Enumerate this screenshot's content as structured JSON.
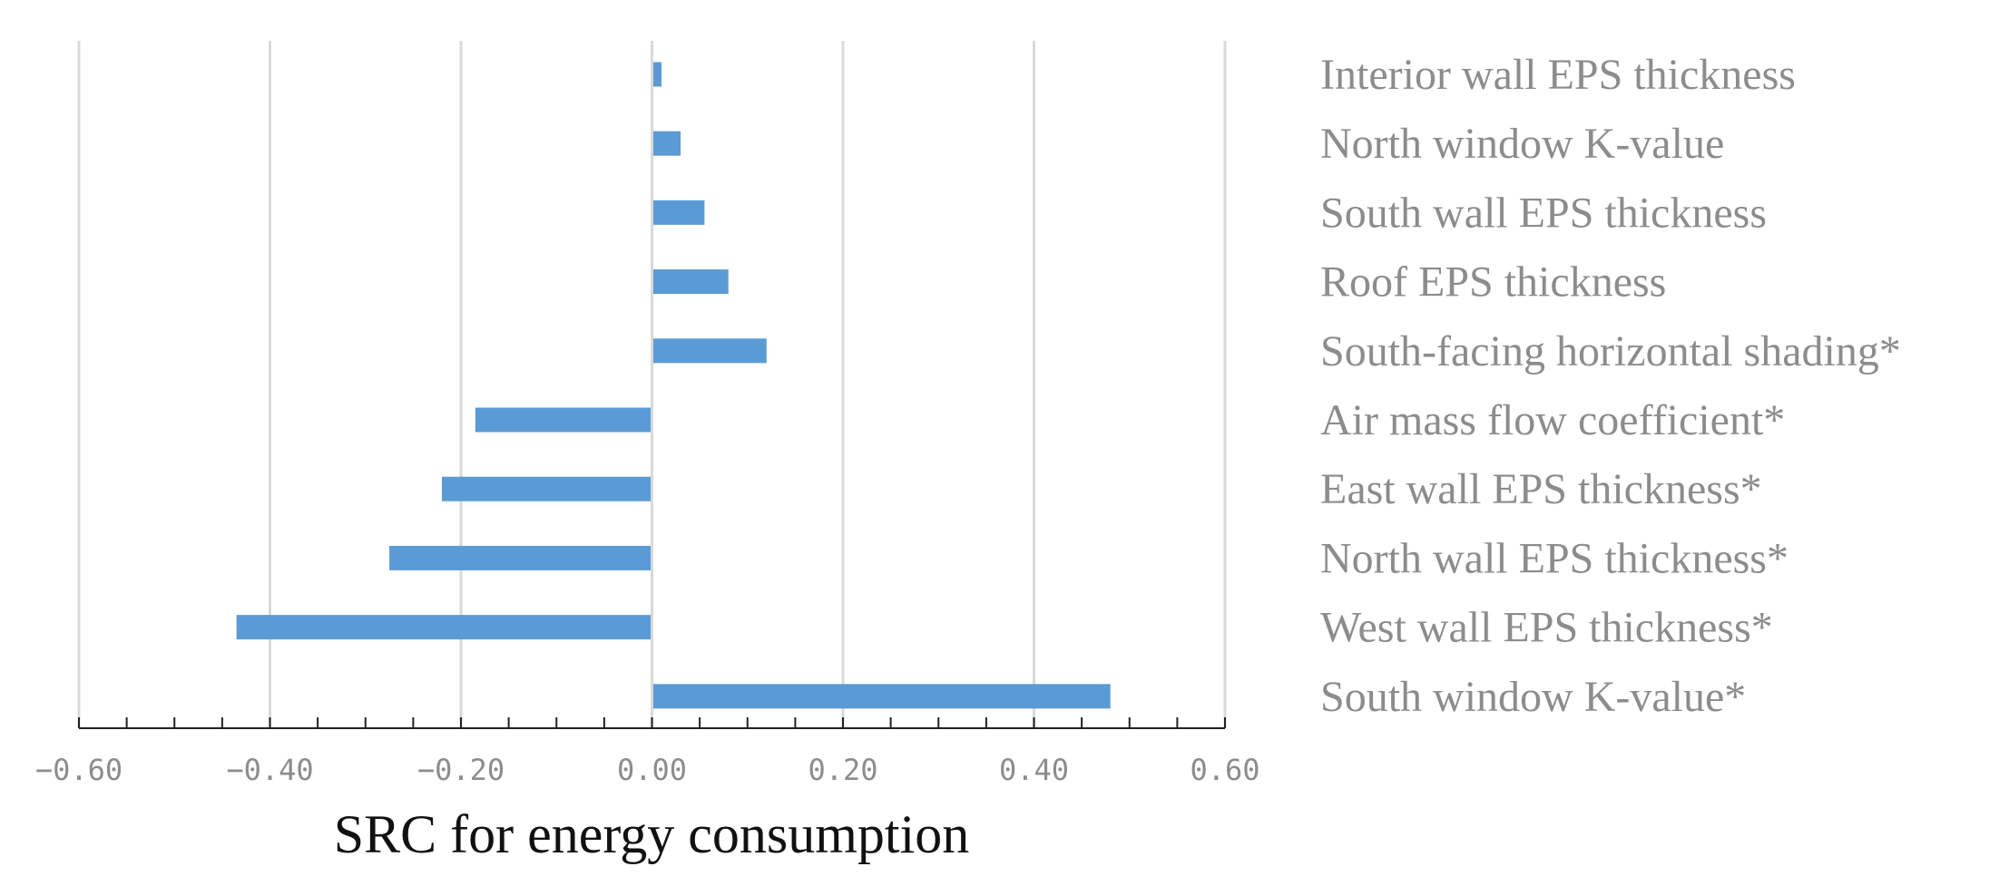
{
  "chart_data": {
    "type": "bar",
    "orientation": "horizontal",
    "title": "",
    "xlabel": "SRC for energy consumption",
    "ylabel": "",
    "xlim": [
      -0.6,
      0.6
    ],
    "xticks": [
      -0.6,
      -0.4,
      -0.2,
      0.0,
      0.2,
      0.4,
      0.6
    ],
    "xtick_labels": [
      "−0.60",
      "−0.40",
      "−0.20",
      "0.00",
      "0.20",
      "0.40",
      "0.60"
    ],
    "grid": "vertical",
    "legend": "none",
    "categories": [
      "Interior wall EPS thickness",
      "North window K-value",
      "South wall EPS thickness",
      "Roof EPS thickness",
      "South-facing horizontal shading*",
      "Air mass flow coefficient*",
      "East wall EPS thickness*",
      "North wall EPS thickness*",
      "West wall EPS thickness*",
      "South window K-value*"
    ],
    "values": [
      0.01,
      0.03,
      0.055,
      0.08,
      0.12,
      -0.185,
      -0.22,
      -0.275,
      -0.435,
      0.48
    ],
    "bar_color": "#5b9bd5"
  }
}
